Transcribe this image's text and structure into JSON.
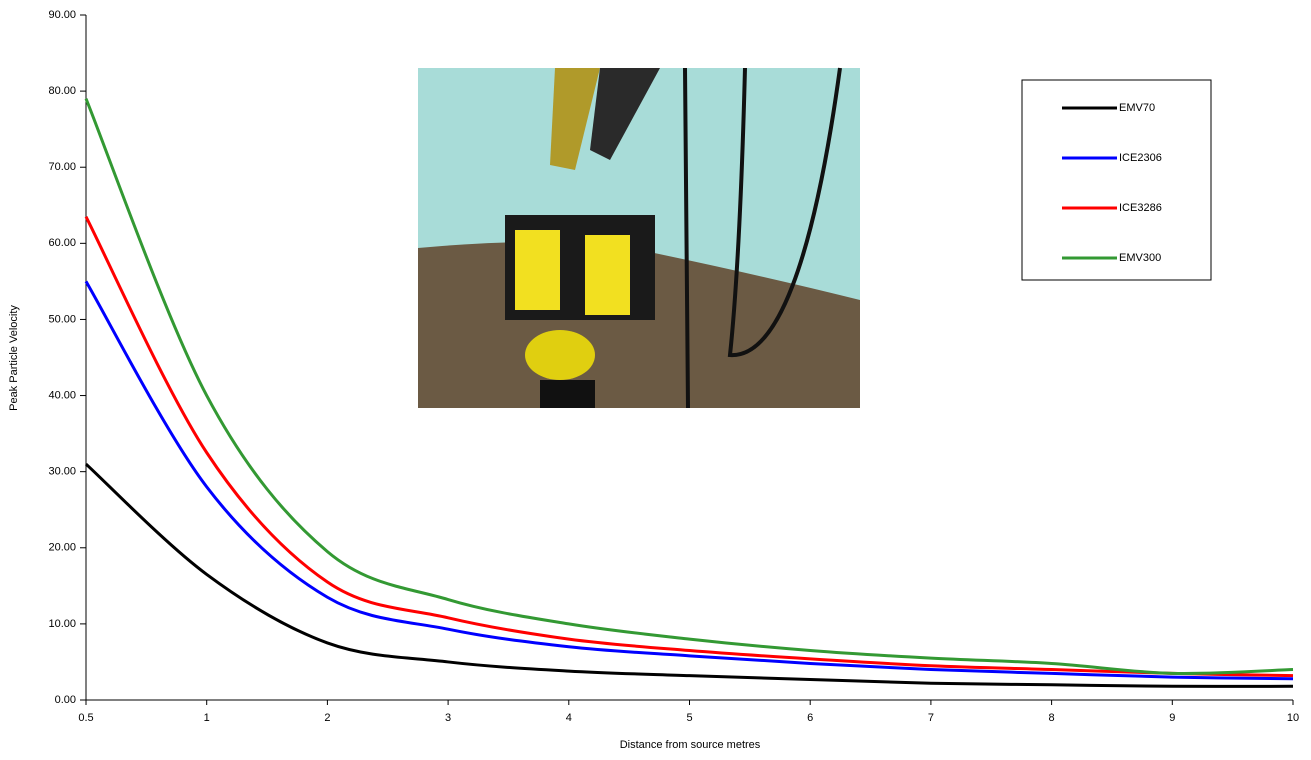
{
  "chart_data": {
    "type": "line",
    "x_label": "Distance from source metres",
    "y_label": "Peak Particle Velocity",
    "categories": [
      "0.5",
      "1",
      "2",
      "3",
      "4",
      "5",
      "6",
      "7",
      "8",
      "9",
      "10"
    ],
    "series": [
      {
        "name": "EMV70",
        "color": "#000000",
        "values": [
          31,
          16.5,
          7.5,
          5,
          3.8,
          3.2,
          2.7,
          2.2,
          2,
          1.8,
          1.8
        ]
      },
      {
        "name": "ICE2306",
        "color": "#0000ff",
        "values": [
          55,
          28,
          13.5,
          9.3,
          7,
          5.8,
          4.8,
          4,
          3.5,
          3,
          2.8
        ]
      },
      {
        "name": "ICE3286",
        "color": "#ff0000",
        "values": [
          63.5,
          32.5,
          15.5,
          10.8,
          8,
          6.5,
          5.4,
          4.5,
          4,
          3.5,
          3.2
        ]
      },
      {
        "name": "EMV300",
        "color": "#339933",
        "values": [
          79,
          40,
          19.5,
          13.2,
          10,
          8,
          6.5,
          5.5,
          4.8,
          3.5,
          4
        ]
      }
    ],
    "ylim": [
      0,
      90
    ],
    "yticks": [
      {
        "value": 0,
        "label": "0.00"
      },
      {
        "value": 10,
        "label": "10.00"
      },
      {
        "value": 20,
        "label": "20.00"
      },
      {
        "value": 30,
        "label": "30.00"
      },
      {
        "value": 40,
        "label": "40.00"
      },
      {
        "value": 50,
        "label": "50.00"
      },
      {
        "value": 60,
        "label": "60.00"
      },
      {
        "value": 70,
        "label": "70.00"
      },
      {
        "value": 80,
        "label": "80.00"
      },
      {
        "value": 90,
        "label": "90.00"
      }
    ]
  }
}
